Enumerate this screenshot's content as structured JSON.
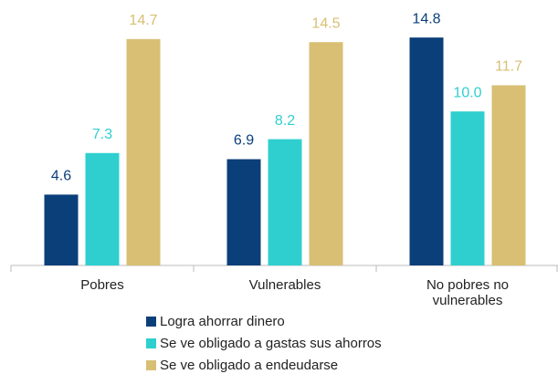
{
  "chart_data": {
    "type": "bar",
    "categories": [
      "Pobres",
      "Vulnerables",
      "No pobres no vulnerables"
    ],
    "series": [
      {
        "name": "Logra ahorrar dinero",
        "color": "#0b3f7a",
        "values": [
          4.6,
          6.9,
          14.8
        ],
        "value_labels": [
          "4.6",
          "6.9",
          "14.8"
        ]
      },
      {
        "name": "Se ve obligado a gastas sus ahorros",
        "color": "#2fcfcf",
        "values": [
          7.3,
          8.2,
          10.0
        ],
        "value_labels": [
          "7.3",
          "8.2",
          "10.0"
        ]
      },
      {
        "name": "Se ve obligado a endeudarse",
        "color": "#d8bf73",
        "values": [
          14.7,
          14.5,
          11.7
        ],
        "value_labels": [
          "14.7",
          "14.5",
          "11.7"
        ]
      }
    ],
    "ylim": [
      0,
      17
    ]
  }
}
